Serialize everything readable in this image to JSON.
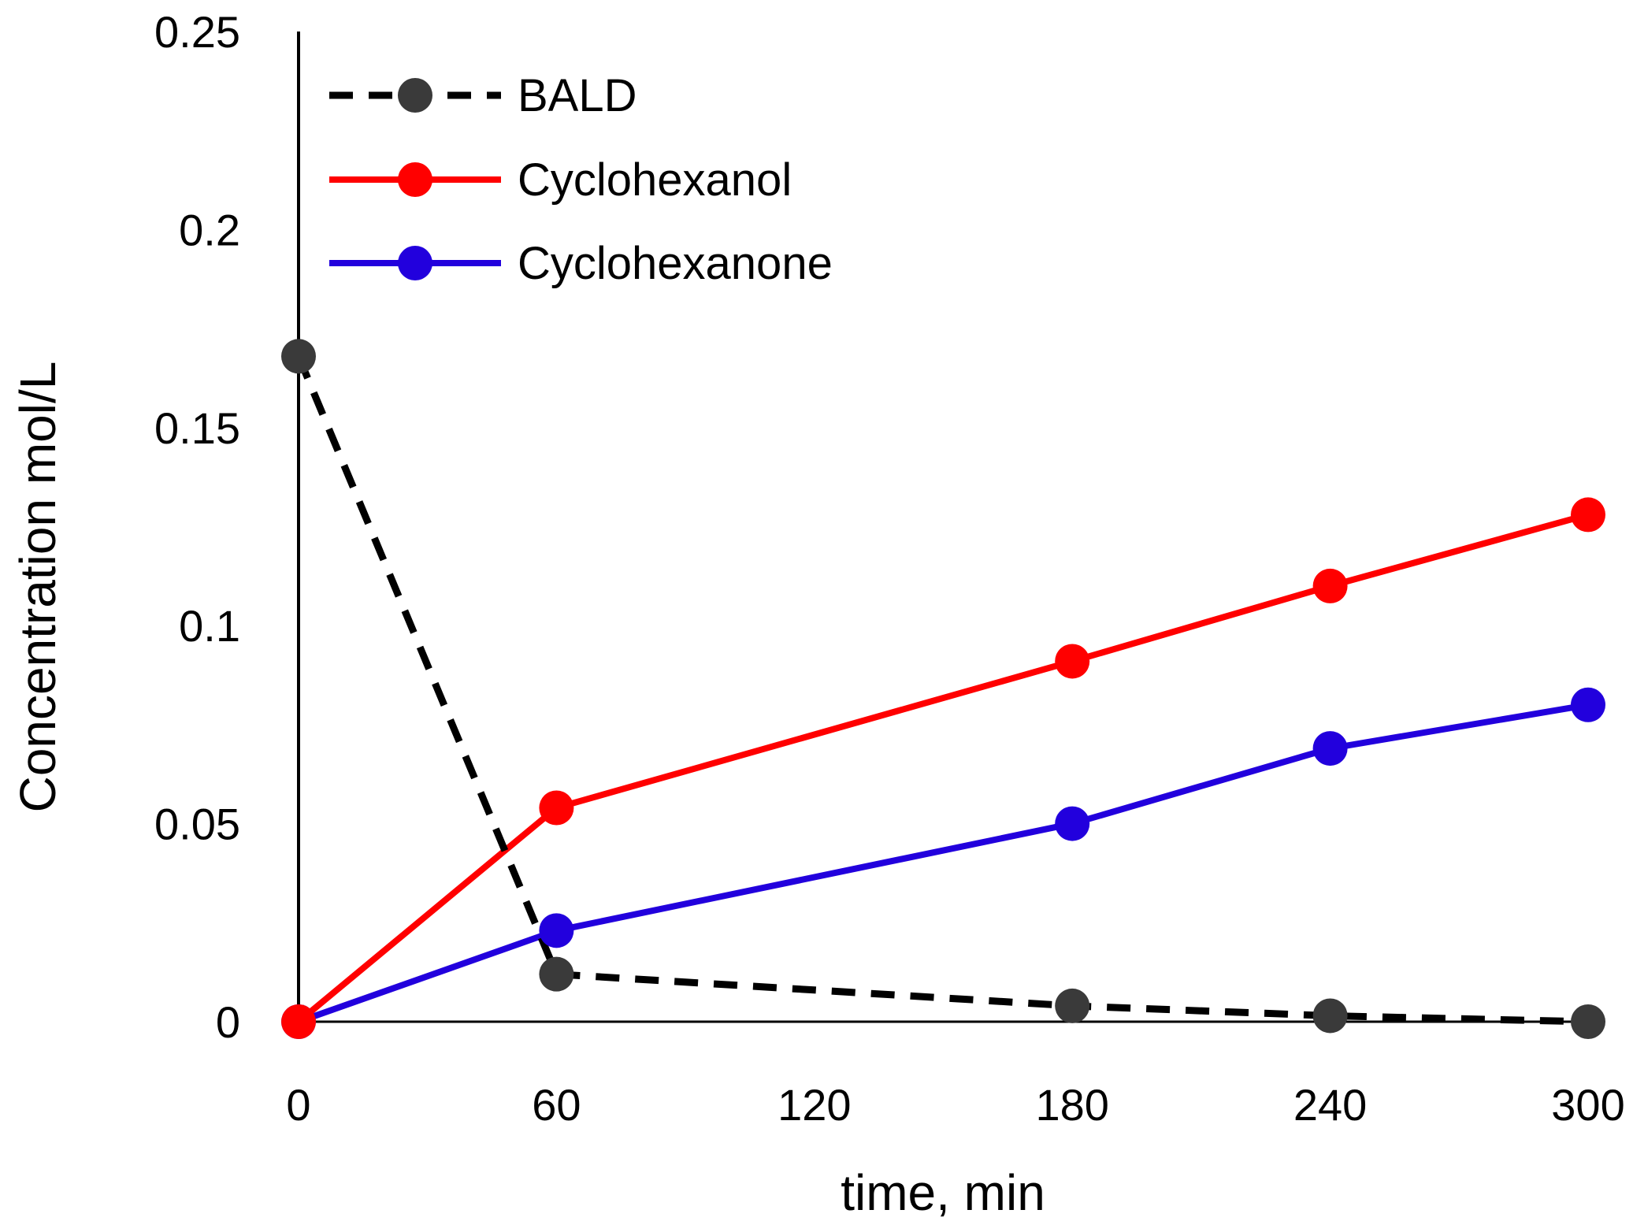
{
  "chart_data": {
    "type": "line",
    "title": "",
    "xlabel": "time, min",
    "ylabel": "Concentration mol/L",
    "x": [
      0,
      60,
      180,
      240,
      300
    ],
    "xticks": [
      0,
      60,
      120,
      180,
      240,
      300
    ],
    "xtick_labels": [
      "0",
      "60",
      "120",
      "180",
      "240",
      "300"
    ],
    "xlim": [
      0,
      300
    ],
    "yticks": [
      0,
      0.05,
      0.1,
      0.15,
      0.2,
      0.25
    ],
    "ytick_labels": [
      "0",
      "0.05",
      "0.1",
      "0.15",
      "0.2",
      "0.25"
    ],
    "ylim": [
      0,
      0.25
    ],
    "grid": false,
    "legend_position": "top-left",
    "series": [
      {
        "name": "BALD",
        "values": [
          0.168,
          0.012,
          0.004,
          0.0015,
          0.0
        ],
        "color": "#000000",
        "marker_color": "#3a3a3a",
        "dashed": true
      },
      {
        "name": "Cyclohexanol",
        "values": [
          0.0,
          0.054,
          0.091,
          0.11,
          0.128
        ],
        "color": "#ff0000",
        "marker_color": "#ff0000",
        "dashed": false
      },
      {
        "name": "Cyclohexanone",
        "values": [
          0.0,
          0.023,
          0.05,
          0.069,
          0.08
        ],
        "color": "#2200dd",
        "marker_color": "#2200dd",
        "dashed": false
      }
    ]
  }
}
